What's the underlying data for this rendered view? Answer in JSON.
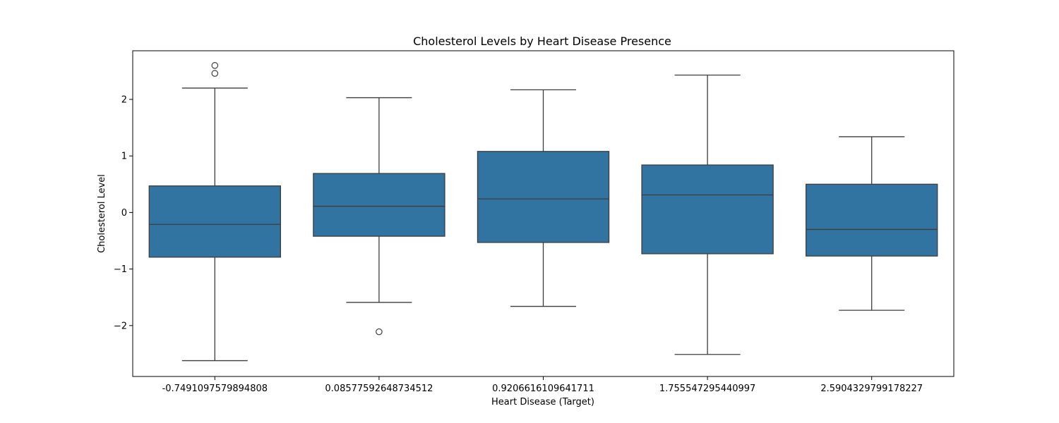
{
  "chart_data": {
    "type": "box",
    "title": "Cholesterol Levels by Heart Disease Presence",
    "xlabel": "Heart Disease (Target)",
    "ylabel": "Cholesterol Level",
    "ylim": [
      -2.9,
      2.86
    ],
    "yticks": [
      -2,
      -1,
      0,
      1,
      2
    ],
    "ytick_labels": [
      "−2",
      "−1",
      "0",
      "1",
      "2"
    ],
    "box_color": "#3274a1",
    "line_color": "#3d3d3d",
    "grid": false,
    "categories": [
      "-0.7491097579894808",
      "0.08577592648734512",
      "0.9206616109641711",
      "1.755547295440997",
      "2.5904329799178227"
    ],
    "boxes": [
      {
        "whisker_low": -2.62,
        "q1": -0.79,
        "median": -0.21,
        "q3": 0.47,
        "whisker_high": 2.2,
        "outliers": [
          2.46,
          2.6
        ]
      },
      {
        "whisker_low": -1.59,
        "q1": -0.42,
        "median": 0.11,
        "q3": 0.69,
        "whisker_high": 2.03,
        "outliers": [
          -2.11
        ]
      },
      {
        "whisker_low": -1.66,
        "q1": -0.53,
        "median": 0.24,
        "q3": 1.08,
        "whisker_high": 2.17,
        "outliers": []
      },
      {
        "whisker_low": -2.51,
        "q1": -0.73,
        "median": 0.31,
        "q3": 0.84,
        "whisker_high": 2.43,
        "outliers": []
      },
      {
        "whisker_low": -1.73,
        "q1": -0.77,
        "median": -0.3,
        "q3": 0.5,
        "whisker_high": 1.34,
        "outliers": []
      }
    ]
  }
}
